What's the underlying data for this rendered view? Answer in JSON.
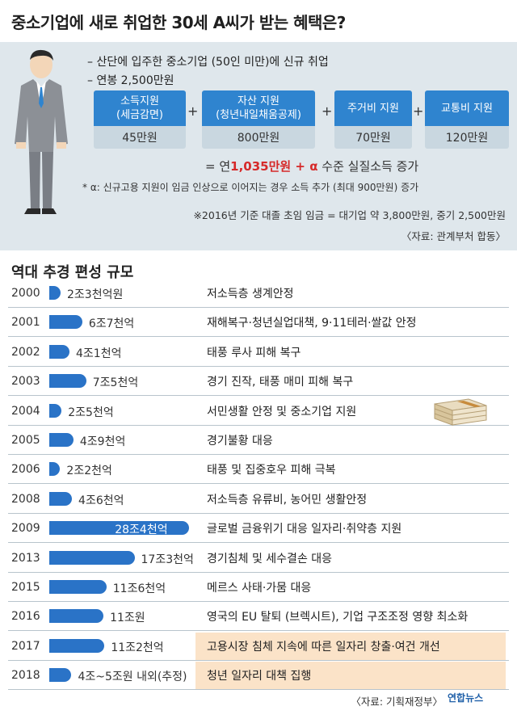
{
  "title": "중소기업에 새로 취업한 30세 A씨가 받는 혜택은?",
  "conditions": [
    "– 산단에 입주한 중소기업 (50인 미만)에 신규 취업",
    "– 연봉 2,500만원"
  ],
  "benefits": [
    {
      "line1": "소득지원",
      "line2": "(세금감면)",
      "amount": "45만원"
    },
    {
      "line1": "자산 지원",
      "line2": "(청년내일채움공제)",
      "amount": "800만원"
    },
    {
      "line1": "주거비 지원",
      "line2": "",
      "amount": "70만원"
    },
    {
      "line1": "교통비 지원",
      "line2": "",
      "amount": "120만원"
    }
  ],
  "plus_sign": "+",
  "total": {
    "prefix": "= 연",
    "highlight": "1,035만원 + α",
    "suffix": " 수준 실질소득 증가"
  },
  "alpha_note": "* α: 신규고용 지원이 임금 인상으로 이어지는 경우 소득 추가 (최대 900만원) 증가",
  "wage_note": "※2016년 기준 대졸 초임 임금 = 대기업 약 3,800만원, 중기 2,500만원",
  "source1": "〈자료: 관계부처 합동〉",
  "section_title": "역대 추경 편성 규모",
  "chart_data": {
    "type": "bar",
    "title": "역대 추경 편성 규모",
    "unit": "조원",
    "categories": [
      "2000",
      "2001",
      "2002",
      "2003",
      "2004",
      "2005",
      "2006",
      "2008",
      "2009",
      "2013",
      "2015",
      "2016",
      "2017",
      "2018"
    ],
    "values": [
      2.3,
      6.7,
      4.1,
      7.5,
      2.5,
      4.9,
      2.2,
      4.6,
      28.4,
      17.3,
      11.6,
      11.0,
      11.2,
      4.5
    ],
    "labels": [
      "2조3천억원",
      "6조7천억",
      "4조1천억",
      "7조5천억",
      "2조5천억",
      "4조9천억",
      "2조2천억",
      "4조6천억",
      "28조4천억",
      "17조3천억",
      "11조6천억",
      "11조원",
      "11조2천억",
      "4조~5조원 내외(추정)"
    ],
    "descriptions": [
      "저소득층 생계안정",
      "재해복구·청년실업대책, 9·11테러·쌀값 안정",
      "태풍 루사 피해 복구",
      "경기 진작, 태풍 매미 피해 복구",
      "서민생활 안정 및 중소기업 지원",
      "경기불황 대응",
      "태풍 및 집중호우 피해 극복",
      "저소득층 유류비, 농어민 생활안정",
      "글로벌 금융위기 대응 일자리·취약층 지원",
      "경기침체 및 세수결손 대응",
      "메르스 사태·가뭄 대응",
      "영국의 EU 탈퇴 (브렉시트), 기업 구조조정 영향 최소화",
      "고용시장 침체 지속에 따른 일자리 창출·여건 개선",
      "청년 일자리 대책 집행"
    ],
    "highlighted_rows": [
      "2017",
      "2018"
    ],
    "colors": {
      "bar": "#2a73c7",
      "highlight_bg": "#fbe3c8",
      "panel_bg": "#dfe7ec"
    }
  },
  "source2": "〈자료: 기획재정부〉",
  "logo": "연합뉴스"
}
